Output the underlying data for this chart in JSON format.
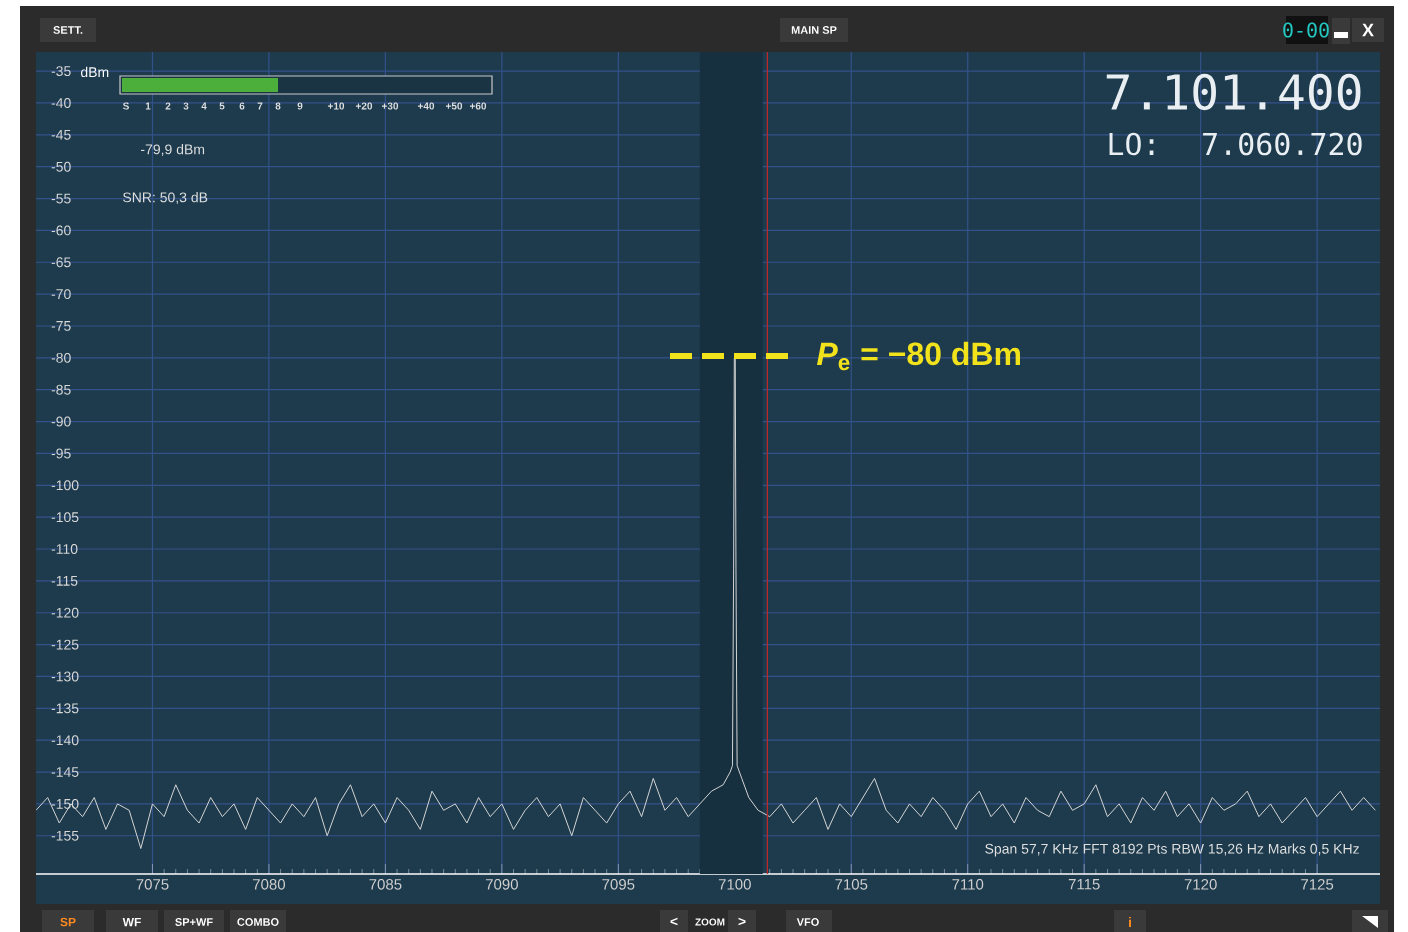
{
  "chart_data": {
    "type": "line",
    "ylabel": "dBm",
    "xlim": [
      7070,
      7127.7
    ],
    "ylim": [
      -161,
      -32
    ],
    "xticks": [
      7075,
      7080,
      7085,
      7090,
      7095,
      7100,
      7105,
      7110,
      7115,
      7120,
      7125
    ],
    "yticks": [
      -35,
      -40,
      -45,
      -50,
      -55,
      -60,
      -65,
      -70,
      -75,
      -80,
      -85,
      -90,
      -95,
      -100,
      -105,
      -110,
      -115,
      -120,
      -125,
      -130,
      -135,
      -140,
      -145,
      -150,
      -155
    ],
    "grid": true,
    "bands": [
      {
        "axis": "x",
        "from": 7098.5,
        "to": 7101.2,
        "color": "#16303f"
      }
    ],
    "ref_lines": [
      {
        "axis": "x",
        "value": 7101.4,
        "color": "#c0282a"
      }
    ],
    "series": [
      {
        "color": "#d4d4d4",
        "x": [
          7070,
          7070.5,
          7071,
          7071.5,
          7072,
          7072.5,
          7073,
          7073.5,
          7074,
          7074.5,
          7075,
          7075.5,
          7076,
          7076.5,
          7077,
          7077.5,
          7078,
          7078.5,
          7079,
          7079.5,
          7080,
          7080.5,
          7081,
          7081.5,
          7082,
          7082.5,
          7083,
          7083.5,
          7084,
          7084.5,
          7085,
          7085.5,
          7086,
          7086.5,
          7087,
          7087.5,
          7088,
          7088.5,
          7089,
          7089.5,
          7090,
          7090.5,
          7091,
          7091.5,
          7092,
          7092.5,
          7093,
          7093.5,
          7094,
          7094.5,
          7095,
          7095.5,
          7096,
          7096.5,
          7097,
          7097.5,
          7098,
          7098.5,
          7099,
          7099.5,
          7099.8,
          7099.9,
          7099.95,
          7099.98,
          7100.02,
          7100.05,
          7100.1,
          7100.3,
          7100.6,
          7101,
          7101.5,
          7102,
          7102.5,
          7103,
          7103.5,
          7104,
          7104.5,
          7105,
          7105.5,
          7106,
          7106.5,
          7107,
          7107.5,
          7108,
          7108.5,
          7109,
          7109.5,
          7110,
          7110.5,
          7111,
          7111.5,
          7112,
          7112.5,
          7113,
          7113.5,
          7114,
          7114.5,
          7115,
          7115.5,
          7116,
          7116.5,
          7117,
          7117.5,
          7118,
          7118.5,
          7119,
          7119.5,
          7120,
          7120.5,
          7121,
          7121.5,
          7122,
          7122.5,
          7123,
          7123.5,
          7124,
          7124.5,
          7125,
          7125.5,
          7126,
          7126.5,
          7127,
          7127.5
        ],
        "values": [
          -151,
          -149,
          -153,
          -150,
          -152,
          -149,
          -154,
          -150,
          -151,
          -157,
          -150,
          -152,
          -147,
          -151,
          -153,
          -149,
          -152,
          -150,
          -154,
          -149,
          -151,
          -153,
          -150,
          -152,
          -149,
          -155,
          -150,
          -147,
          -152,
          -150,
          -153,
          -149,
          -151,
          -154,
          -148,
          -151,
          -150,
          -153,
          -149,
          -152,
          -150,
          -154,
          -151,
          -149,
          -152,
          -150,
          -155,
          -149,
          -151,
          -153,
          -150,
          -148,
          -152,
          -146,
          -151,
          -149,
          -152,
          -150,
          -148,
          -147,
          -145,
          -144,
          -113,
          -80,
          -80,
          -113,
          -144,
          -146,
          -149,
          -151,
          -152,
          -150,
          -153,
          -151,
          -149,
          -154,
          -150,
          -152,
          -149,
          -146,
          -151,
          -153,
          -150,
          -152,
          -149,
          -151,
          -154,
          -150,
          -148,
          -152,
          -150,
          -153,
          -149,
          -151,
          -152,
          -148,
          -151,
          -150,
          -147,
          -152,
          -150,
          -153,
          -149,
          -151,
          -148,
          -152,
          -150,
          -153,
          -149,
          -151,
          -150,
          -148,
          -152,
          -150,
          -153,
          -151,
          -149,
          -152,
          -150,
          -148,
          -151,
          -149,
          -151
        ]
      }
    ],
    "annotations": [
      "*P*$_{e}$ = −80 dBm",
      "-79,9 dBm",
      "SNR: 50,3 dB",
      "7.101.400",
      "LO:",
      "7.060.720",
      "Span 57,7 KHz   FFT 8192 Pts   RBW 15,26 Hz   Marks 0,5 KHz",
      "SETT.",
      "MAIN SP",
      "0-00",
      "X",
      "SP",
      "WF",
      "SP+WF",
      "COMBO",
      "<",
      "ZOOM",
      ">",
      "VFO",
      "i",
      "S",
      "1",
      "2",
      "3",
      "4",
      "5",
      "6",
      "7",
      "8",
      "9",
      "+10",
      "+20",
      "+30",
      "+40",
      "+50",
      "+60"
    ]
  }
}
